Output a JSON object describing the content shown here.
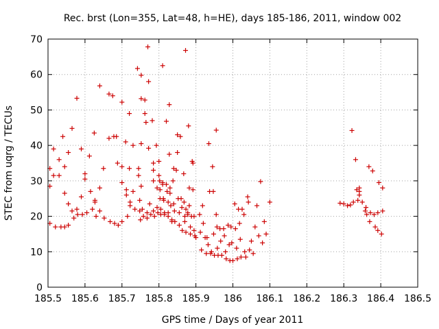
{
  "chart_data": {
    "type": "scatter",
    "title": "Rec. brst (Lon=355, Lat=48, h=HE), days 185-186, 2011, window 002",
    "xlabel": "GPS time / Days of year 2011",
    "ylabel": "STEC from uqrg / TECUs",
    "xlim": [
      185.5,
      186.5
    ],
    "ylim": [
      0,
      70
    ],
    "xticks": [
      185.5,
      185.6,
      185.7,
      185.8,
      185.9,
      186.0,
      186.1,
      186.2,
      186.3,
      186.4,
      186.5
    ],
    "xtick_labels": [
      "185.5",
      "185.6",
      "185.7",
      "185.8",
      "185.9",
      "186",
      "186.1",
      "186.2",
      "186.3",
      "186.4",
      "186.5"
    ],
    "yticks": [
      0,
      10,
      20,
      30,
      40,
      50,
      60,
      70
    ],
    "ytick_labels": [
      "0",
      "10",
      "20",
      "30",
      "40",
      "50",
      "60",
      "70"
    ],
    "marker": "+",
    "marker_color": "#cc0000",
    "grid": "dotted",
    "series": [
      {
        "name": "STEC",
        "points": [
          [
            185.505,
            33.5
          ],
          [
            185.505,
            28.5
          ],
          [
            185.505,
            18
          ],
          [
            185.515,
            39
          ],
          [
            185.515,
            31.5
          ],
          [
            185.52,
            17
          ],
          [
            185.53,
            36
          ],
          [
            185.53,
            31.5
          ],
          [
            185.535,
            17
          ],
          [
            185.54,
            42.5
          ],
          [
            185.545,
            34
          ],
          [
            185.545,
            26.5
          ],
          [
            185.545,
            17
          ],
          [
            185.555,
            38
          ],
          [
            185.555,
            23.5
          ],
          [
            185.555,
            17.5
          ],
          [
            185.565,
            44.8
          ],
          [
            185.565,
            21.5
          ],
          [
            185.57,
            19.5
          ],
          [
            185.578,
            53.3
          ],
          [
            185.578,
            22
          ],
          [
            185.58,
            20.5
          ],
          [
            185.59,
            39
          ],
          [
            185.59,
            25.5
          ],
          [
            185.593,
            20.5
          ],
          [
            185.6,
            32
          ],
          [
            185.6,
            30.5
          ],
          [
            185.605,
            21
          ],
          [
            185.612,
            37
          ],
          [
            185.615,
            27
          ],
          [
            185.62,
            22
          ],
          [
            185.625,
            43.5
          ],
          [
            185.627,
            24.5
          ],
          [
            185.627,
            24
          ],
          [
            185.63,
            20
          ],
          [
            185.64,
            56.8
          ],
          [
            185.64,
            28
          ],
          [
            185.64,
            21.5
          ],
          [
            185.65,
            33.5
          ],
          [
            185.652,
            19.5
          ],
          [
            185.665,
            54.5
          ],
          [
            185.665,
            42
          ],
          [
            185.668,
            18.5
          ],
          [
            185.675,
            54
          ],
          [
            185.678,
            42.5
          ],
          [
            185.68,
            18
          ],
          [
            185.685,
            42.5
          ],
          [
            185.688,
            35
          ],
          [
            185.69,
            17.5
          ],
          [
            185.7,
            52.2
          ],
          [
            185.7,
            34
          ],
          [
            185.7,
            29.5
          ],
          [
            185.7,
            18.5
          ],
          [
            185.71,
            41
          ],
          [
            185.712,
            27.5
          ],
          [
            185.712,
            26
          ],
          [
            185.715,
            20
          ],
          [
            185.72,
            49
          ],
          [
            185.72,
            33.5
          ],
          [
            185.722,
            24
          ],
          [
            185.722,
            23
          ],
          [
            185.73,
            40
          ],
          [
            185.73,
            27
          ],
          [
            185.735,
            22
          ],
          [
            185.742,
            61.7
          ],
          [
            185.745,
            33.5
          ],
          [
            185.745,
            31.5
          ],
          [
            185.748,
            24.5
          ],
          [
            185.748,
            21.5
          ],
          [
            185.75,
            19
          ],
          [
            185.752,
            59.8
          ],
          [
            185.752,
            53.2
          ],
          [
            185.752,
            40.5
          ],
          [
            185.752,
            28.5
          ],
          [
            185.755,
            22
          ],
          [
            185.758,
            20
          ],
          [
            185.762,
            52.8
          ],
          [
            185.762,
            49
          ],
          [
            185.765,
            46.5
          ],
          [
            185.768,
            21
          ],
          [
            185.768,
            19.5
          ],
          [
            185.77,
            67.8
          ],
          [
            185.772,
            58
          ],
          [
            185.772,
            39.2
          ],
          [
            185.775,
            23.5
          ],
          [
            185.778,
            20.5
          ],
          [
            185.782,
            47
          ],
          [
            185.785,
            35
          ],
          [
            185.785,
            33
          ],
          [
            185.785,
            30
          ],
          [
            185.785,
            21.5
          ],
          [
            185.788,
            20
          ],
          [
            185.793,
            40
          ],
          [
            185.795,
            28
          ],
          [
            185.795,
            22.5
          ],
          [
            185.797,
            21
          ],
          [
            185.8,
            35.5
          ],
          [
            185.8,
            31.5
          ],
          [
            185.802,
            30
          ],
          [
            185.803,
            27.5
          ],
          [
            185.803,
            25
          ],
          [
            185.805,
            22
          ],
          [
            185.805,
            20.5
          ],
          [
            185.81,
            62.5
          ],
          [
            185.81,
            29.5
          ],
          [
            185.81,
            29
          ],
          [
            185.812,
            25
          ],
          [
            185.813,
            24.5
          ],
          [
            185.815,
            21
          ],
          [
            185.815,
            20.5
          ],
          [
            185.82,
            46.8
          ],
          [
            185.82,
            29
          ],
          [
            185.822,
            27
          ],
          [
            185.825,
            24
          ],
          [
            185.825,
            21
          ],
          [
            185.825,
            20
          ],
          [
            185.828,
            51.5
          ],
          [
            185.828,
            37.5
          ],
          [
            185.83,
            28
          ],
          [
            185.83,
            26.5
          ],
          [
            185.832,
            23
          ],
          [
            185.835,
            19
          ],
          [
            185.835,
            18.5
          ],
          [
            185.838,
            30
          ],
          [
            185.84,
            33.5
          ],
          [
            185.84,
            23.5
          ],
          [
            185.842,
            21.5
          ],
          [
            185.843,
            18.5
          ],
          [
            185.847,
            33
          ],
          [
            185.85,
            43
          ],
          [
            185.85,
            38
          ],
          [
            185.852,
            25
          ],
          [
            185.855,
            21
          ],
          [
            185.855,
            17.5
          ],
          [
            185.858,
            42.5
          ],
          [
            185.86,
            25
          ],
          [
            185.862,
            22.5
          ],
          [
            185.863,
            16
          ],
          [
            185.867,
            32
          ],
          [
            185.868,
            24
          ],
          [
            185.87,
            20
          ],
          [
            185.87,
            18.5
          ],
          [
            185.872,
            66.8
          ],
          [
            185.873,
            22
          ],
          [
            185.873,
            15.5
          ],
          [
            185.878,
            21
          ],
          [
            185.878,
            20.5
          ],
          [
            185.88,
            45.5
          ],
          [
            185.882,
            28
          ],
          [
            185.882,
            23
          ],
          [
            185.885,
            17
          ],
          [
            185.885,
            15
          ],
          [
            185.888,
            20
          ],
          [
            185.89,
            35.5
          ],
          [
            185.892,
            35
          ],
          [
            185.892,
            27.5
          ],
          [
            185.895,
            20
          ],
          [
            185.895,
            16
          ],
          [
            185.897,
            14.5
          ],
          [
            185.9,
            14
          ],
          [
            185.91,
            20.5
          ],
          [
            185.912,
            15.5
          ],
          [
            185.915,
            10.5
          ],
          [
            185.918,
            23
          ],
          [
            185.92,
            18
          ],
          [
            185.925,
            14
          ],
          [
            185.928,
            9.5
          ],
          [
            185.93,
            14
          ],
          [
            185.933,
            12
          ],
          [
            185.935,
            40.5
          ],
          [
            185.937,
            27
          ],
          [
            185.94,
            9.5
          ],
          [
            185.942,
            10
          ],
          [
            185.945,
            34
          ],
          [
            185.947,
            27
          ],
          [
            185.948,
            15
          ],
          [
            185.95,
            9
          ],
          [
            185.955,
            44.3
          ],
          [
            185.955,
            20.5
          ],
          [
            185.957,
            17
          ],
          [
            185.958,
            11
          ],
          [
            185.96,
            9
          ],
          [
            185.965,
            16.5
          ],
          [
            185.967,
            13
          ],
          [
            185.97,
            9
          ],
          [
            185.975,
            16.5
          ],
          [
            185.977,
            14.5
          ],
          [
            185.98,
            10
          ],
          [
            185.982,
            8
          ],
          [
            185.987,
            17.5
          ],
          [
            185.99,
            12
          ],
          [
            185.992,
            7.5
          ],
          [
            185.995,
            17
          ],
          [
            185.997,
            12.5
          ],
          [
            186.0,
            7.5
          ],
          [
            186.005,
            23.5
          ],
          [
            186.007,
            16.5
          ],
          [
            186.01,
            11
          ],
          [
            186.012,
            8
          ],
          [
            186.015,
            22
          ],
          [
            186.018,
            18
          ],
          [
            186.02,
            13.5
          ],
          [
            186.022,
            8.5
          ],
          [
            186.025,
            22
          ],
          [
            186.03,
            20.5
          ],
          [
            186.032,
            10
          ],
          [
            186.035,
            8.5
          ],
          [
            186.04,
            25.5
          ],
          [
            186.042,
            24
          ],
          [
            186.045,
            10.5
          ],
          [
            186.05,
            13
          ],
          [
            186.055,
            9.5
          ],
          [
            186.06,
            17
          ],
          [
            186.065,
            23
          ],
          [
            186.07,
            14.5
          ],
          [
            186.075,
            29.8
          ],
          [
            186.08,
            12.5
          ],
          [
            186.085,
            18.5
          ],
          [
            186.09,
            15
          ],
          [
            186.1,
            24
          ],
          [
            186.29,
            23.7
          ],
          [
            186.3,
            23.5
          ],
          [
            186.31,
            23
          ],
          [
            186.318,
            23.2
          ],
          [
            186.322,
            44.2
          ],
          [
            186.326,
            24
          ],
          [
            186.332,
            36
          ],
          [
            186.335,
            27.5
          ],
          [
            186.338,
            24.5
          ],
          [
            186.342,
            28
          ],
          [
            186.342,
            27
          ],
          [
            186.342,
            26
          ],
          [
            186.35,
            24
          ],
          [
            186.358,
            21.5
          ],
          [
            186.36,
            22.5
          ],
          [
            186.362,
            20.5
          ],
          [
            186.368,
            34
          ],
          [
            186.37,
            18.5
          ],
          [
            186.372,
            21
          ],
          [
            186.378,
            32.8
          ],
          [
            186.382,
            20.5
          ],
          [
            186.385,
            17
          ],
          [
            186.392,
            21
          ],
          [
            186.392,
            16
          ],
          [
            186.395,
            29.5
          ],
          [
            186.402,
            15
          ],
          [
            186.405,
            21.5
          ],
          [
            186.405,
            28
          ]
        ]
      }
    ]
  }
}
